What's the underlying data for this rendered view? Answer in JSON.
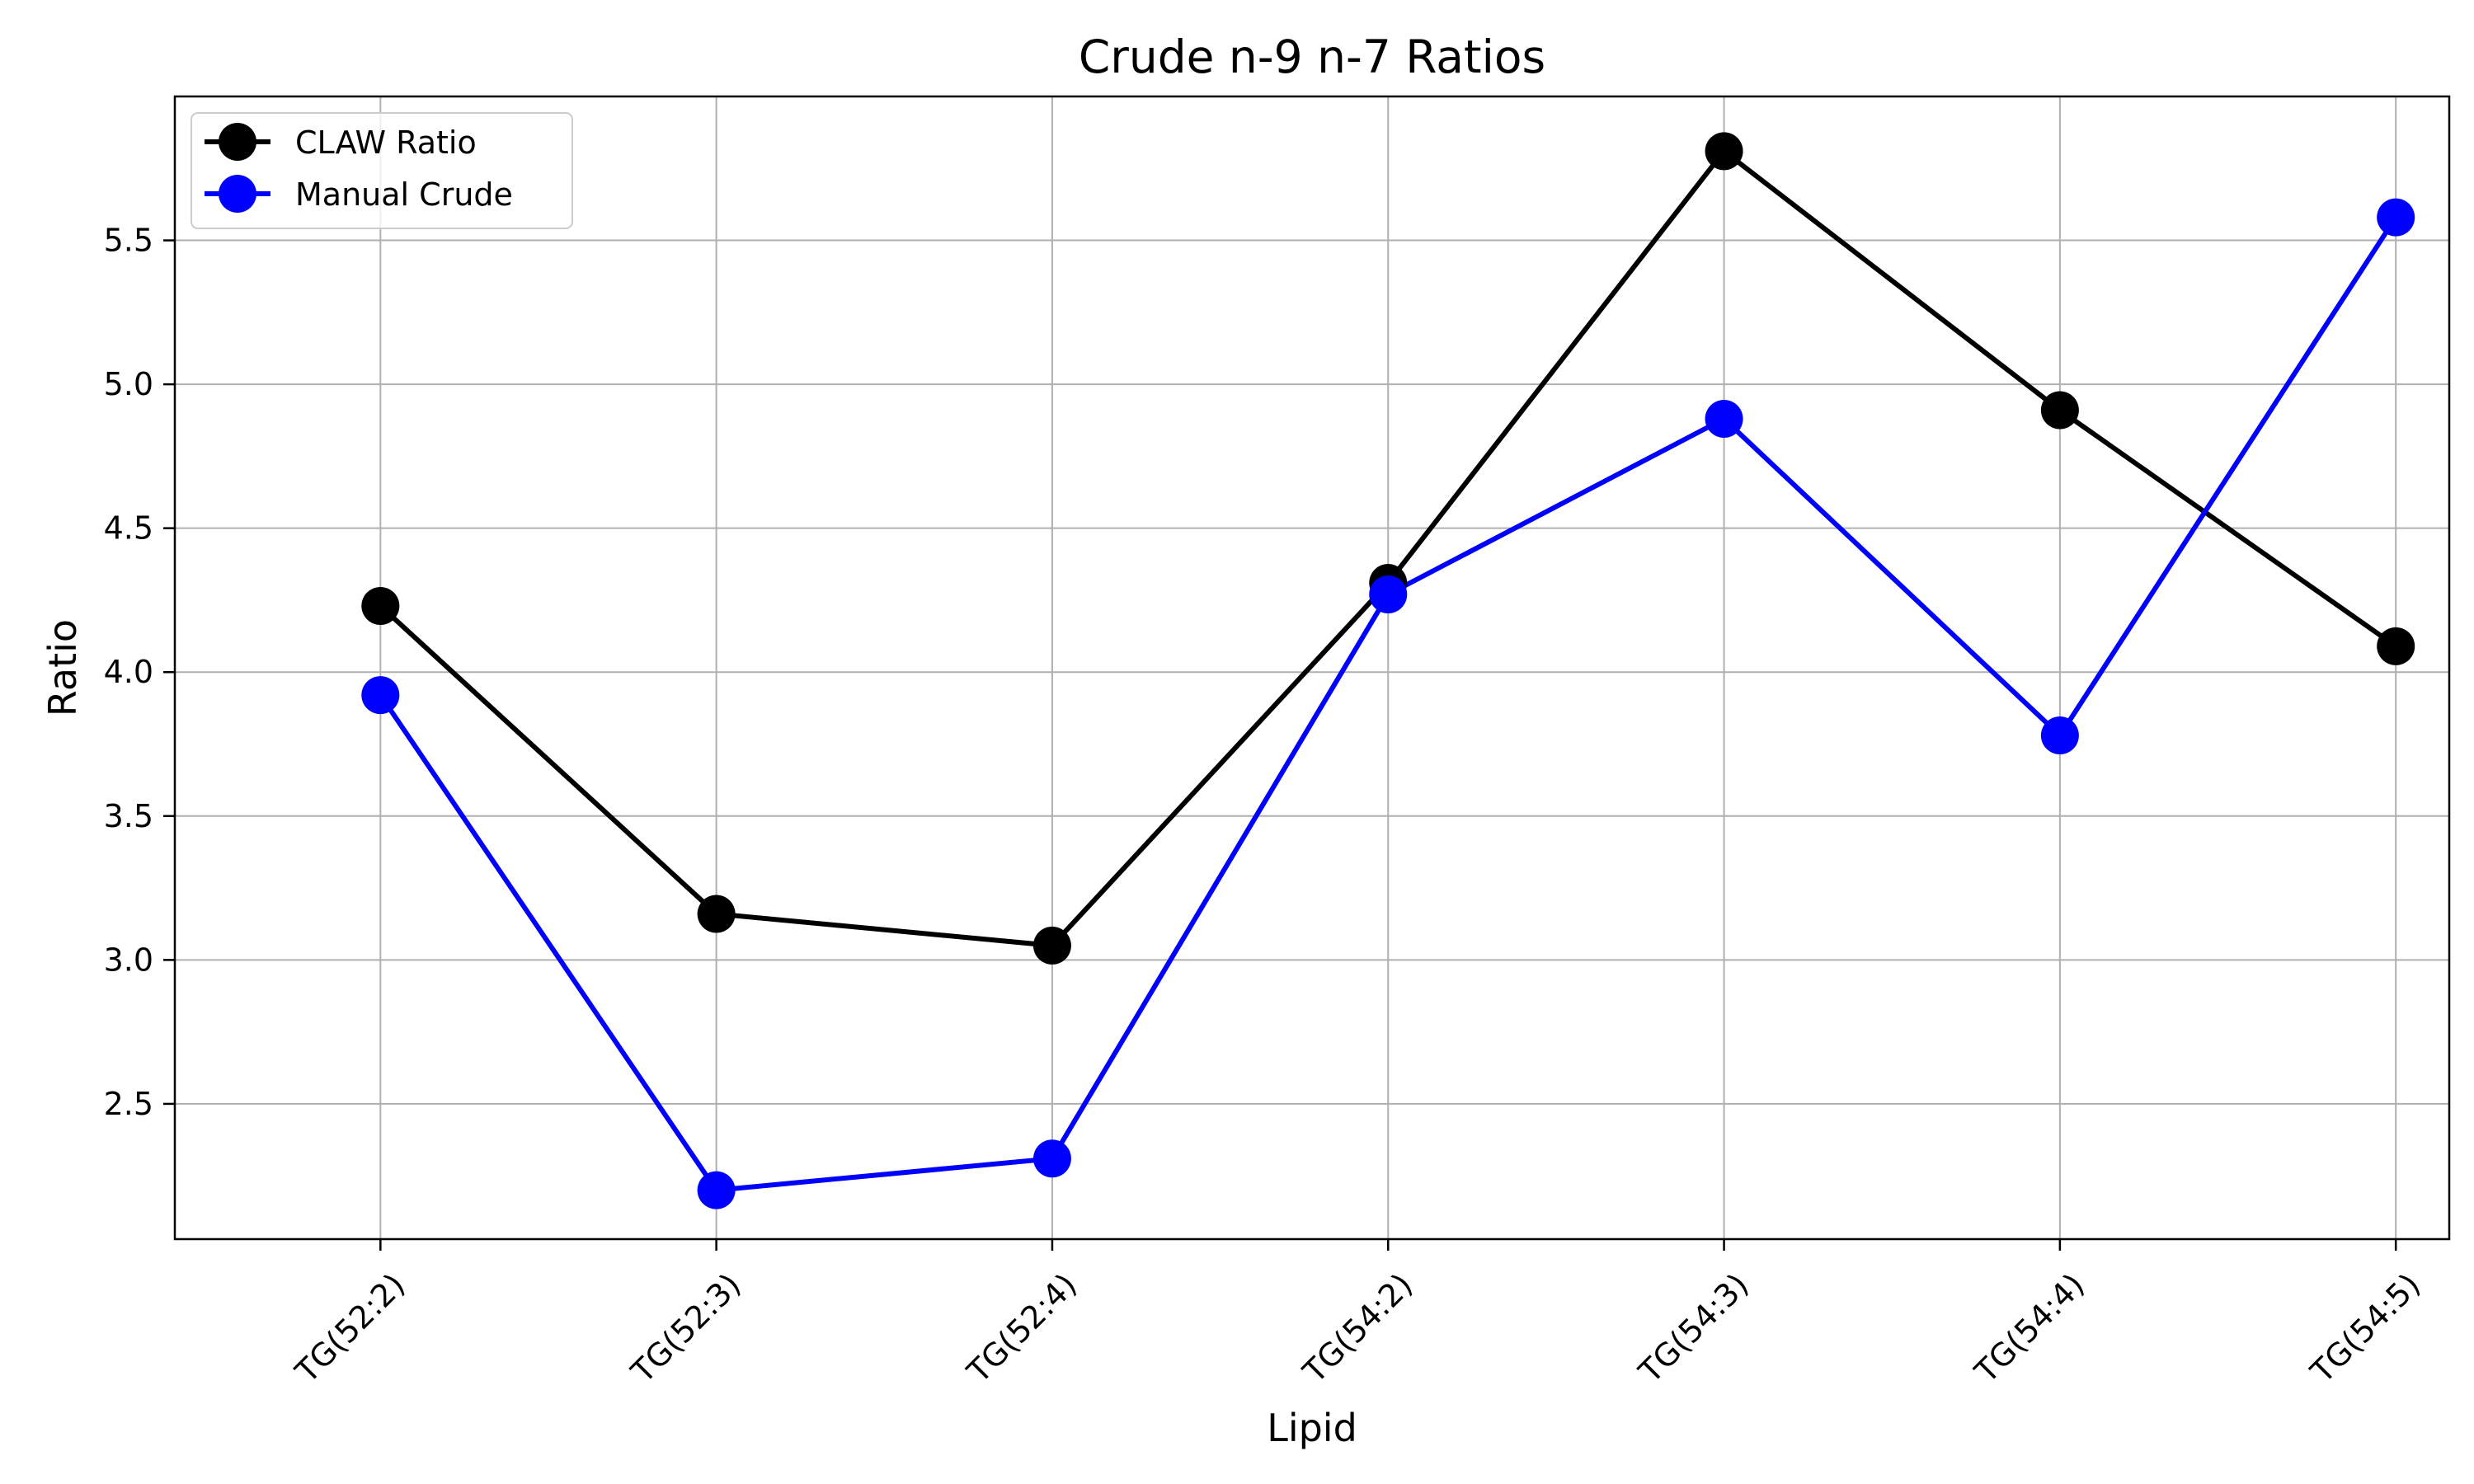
{
  "chart_data": {
    "type": "line",
    "title": "Crude n-9 n-7 Ratios",
    "xlabel": "Lipid",
    "ylabel": "Ratio",
    "categories": [
      "TG(52:2)",
      "TG(52:3)",
      "TG(52:4)",
      "TG(54:2)",
      "TG(54:3)",
      "TG(54:4)",
      "TG(54:5)"
    ],
    "ylim": [
      2.03,
      6.0
    ],
    "yticks": [
      2.5,
      3.0,
      3.5,
      4.0,
      4.5,
      5.0,
      5.5
    ],
    "ytick_labels": [
      "2.5",
      "3.0",
      "3.5",
      "4.0",
      "4.5",
      "5.0",
      "5.5"
    ],
    "grid": true,
    "legend_position": "upper-left",
    "series": [
      {
        "name": "CLAW Ratio",
        "color": "#000000",
        "marker": "circle",
        "values": [
          4.23,
          3.16,
          3.05,
          4.31,
          5.81,
          4.91,
          4.09
        ]
      },
      {
        "name": "Manual Crude",
        "color": "#0000ff",
        "marker": "circle",
        "values": [
          3.92,
          2.2,
          2.31,
          4.27,
          4.88,
          3.78,
          5.58
        ]
      }
    ]
  }
}
